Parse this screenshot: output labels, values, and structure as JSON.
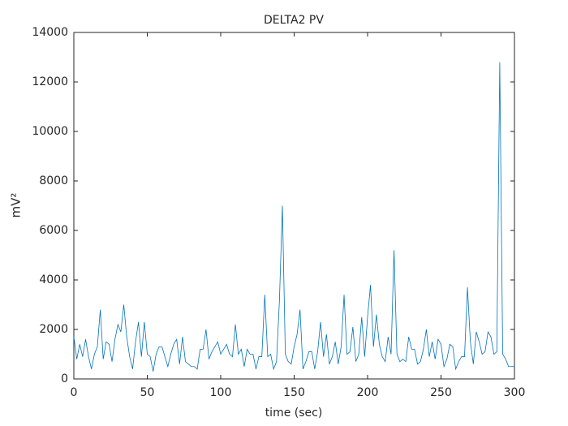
{
  "chart_data": {
    "type": "line",
    "title": "DELTA2 PV",
    "xlabel": "time (sec)",
    "ylabel": "mV²",
    "x": [
      0,
      2,
      4,
      6,
      8,
      10,
      12,
      14,
      16,
      18,
      20,
      22,
      24,
      26,
      28,
      30,
      32,
      34,
      36,
      38,
      40,
      42,
      44,
      46,
      48,
      50,
      52,
      54,
      56,
      58,
      60,
      62,
      64,
      66,
      68,
      70,
      72,
      74,
      76,
      78,
      80,
      82,
      84,
      86,
      88,
      90,
      92,
      94,
      96,
      98,
      100,
      102,
      104,
      106,
      108,
      110,
      112,
      114,
      116,
      118,
      120,
      122,
      124,
      126,
      128,
      130,
      132,
      134,
      136,
      138,
      140,
      142,
      144,
      146,
      148,
      150,
      152,
      154,
      156,
      158,
      160,
      162,
      164,
      166,
      168,
      170,
      172,
      174,
      176,
      178,
      180,
      182,
      184,
      186,
      188,
      190,
      192,
      194,
      196,
      198,
      200,
      202,
      204,
      206,
      208,
      210,
      212,
      214,
      216,
      218,
      220,
      222,
      224,
      226,
      228,
      230,
      232,
      234,
      236,
      238,
      240,
      242,
      244,
      246,
      248,
      250,
      252,
      254,
      256,
      258,
      260,
      262,
      264,
      266,
      268,
      270,
      272,
      274,
      276,
      278,
      280,
      282,
      284,
      286,
      288,
      290,
      292,
      294,
      296,
      298,
      300
    ],
    "series": [
      {
        "name": "DELTA2 PV",
        "color": "#0072bd",
        "values": [
          1700,
          800,
          1400,
          900,
          1600,
          900,
          400,
          1000,
          1300,
          2800,
          800,
          1500,
          1400,
          700,
          1600,
          2200,
          1900,
          3000,
          1700,
          900,
          400,
          1500,
          2300,
          900,
          2300,
          1000,
          900,
          300,
          1000,
          1300,
          1300,
          900,
          500,
          1000,
          1400,
          1600,
          600,
          1700,
          700,
          600,
          500,
          500,
          400,
          1200,
          1200,
          2000,
          800,
          1100,
          1300,
          1500,
          1000,
          1200,
          1400,
          1000,
          900,
          2200,
          1000,
          1200,
          500,
          1200,
          1000,
          1000,
          400,
          900,
          900,
          3400,
          900,
          1000,
          400,
          700,
          3200,
          7000,
          1000,
          700,
          600,
          1300,
          1800,
          2800,
          400,
          700,
          1100,
          1100,
          400,
          1100,
          2300,
          900,
          1800,
          600,
          900,
          1500,
          600,
          1300,
          3400,
          1000,
          1100,
          2100,
          700,
          1000,
          2500,
          900,
          2500,
          3800,
          1300,
          2600,
          1400,
          900,
          700,
          1700,
          1000,
          5200,
          1000,
          700,
          800,
          700,
          1700,
          1200,
          1200,
          600,
          700,
          1200,
          2000,
          900,
          1500,
          800,
          1600,
          1400,
          500,
          800,
          1400,
          1300,
          400,
          700,
          900,
          900,
          3700,
          1500,
          600,
          1900,
          1500,
          1000,
          1100,
          1900,
          1700,
          1000,
          1100,
          12800,
          1000,
          800,
          500,
          500,
          500
        ]
      }
    ],
    "xlim": [
      0,
      300
    ],
    "xticks": [
      0,
      50,
      100,
      150,
      200,
      250,
      300
    ],
    "ylim": [
      0,
      14000
    ],
    "yticks": [
      0,
      2000,
      4000,
      6000,
      8000,
      10000,
      12000,
      14000
    ],
    "grid": false
  }
}
